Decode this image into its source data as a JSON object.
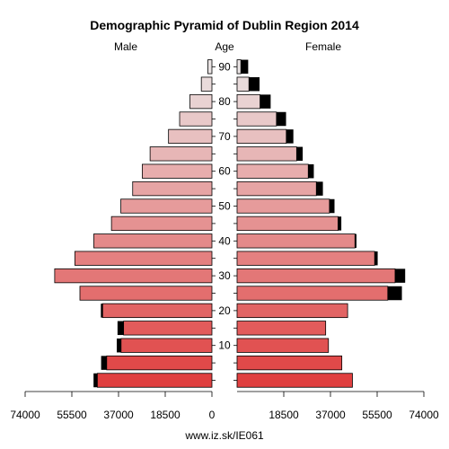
{
  "chart_data": {
    "type": "bar",
    "title": "Demographic Pyramid of Dublin Region 2014",
    "left_label": "Male",
    "center_label": "Age",
    "right_label": "Female",
    "source": "www.iz.sk/IE061",
    "age_groups": [
      "0-4",
      "5-9",
      "10-14",
      "15-19",
      "20-24",
      "25-29",
      "30-34",
      "35-39",
      "40-44",
      "45-49",
      "50-54",
      "55-59",
      "60-64",
      "65-69",
      "70-74",
      "75-79",
      "80-84",
      "85-89",
      "90+"
    ],
    "age_ticks": [
      10,
      20,
      30,
      40,
      50,
      60,
      70,
      80,
      90
    ],
    "x_ticks": [
      "74000",
      "55500",
      "37000",
      "18500",
      "0",
      "18500",
      "37000",
      "55500",
      "74000"
    ],
    "xlim": [
      0,
      74000
    ],
    "series": [
      {
        "name": "Male",
        "values": [
          45400,
          41700,
          36000,
          35000,
          43300,
          52300,
          62300,
          54300,
          46800,
          39800,
          36100,
          31400,
          27600,
          24500,
          17200,
          12800,
          8700,
          4200,
          1600
        ],
        "excess": [
          1500,
          2200,
          1700,
          2400,
          700,
          0,
          0,
          0,
          0,
          0,
          0,
          0,
          0,
          0,
          0,
          0,
          0,
          0,
          0
        ]
      },
      {
        "name": "Female",
        "values": [
          45700,
          41500,
          36200,
          35100,
          43800,
          59700,
          62600,
          54500,
          46700,
          40000,
          36600,
          31400,
          28200,
          23600,
          19500,
          15600,
          9100,
          4700,
          1500
        ],
        "excess": [
          0,
          0,
          0,
          0,
          0,
          5600,
          4000,
          1200,
          600,
          1300,
          2000,
          2600,
          2200,
          2400,
          2800,
          3800,
          4200,
          4200,
          2900
        ]
      }
    ]
  }
}
